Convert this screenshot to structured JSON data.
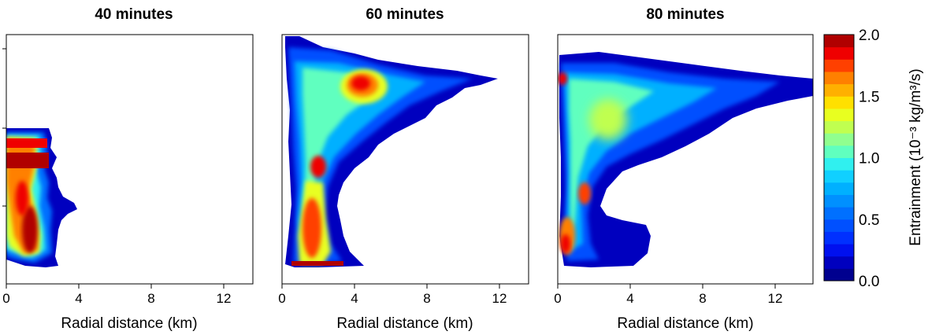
{
  "chart_data": [
    {
      "type": "heatmap",
      "title": "40 minutes",
      "xlabel": "Radial distance (km)",
      "ylabel": "",
      "xlim": [
        0,
        14
      ],
      "xticks": [
        "0",
        "4",
        "8",
        "12"
      ],
      "xtick_values": [
        0,
        4,
        8,
        12
      ],
      "colorbar_ref": "colorbar"
    },
    {
      "type": "heatmap",
      "title": "60 minutes",
      "xlabel": "Radial distance (km)",
      "ylabel": "",
      "xlim": [
        0,
        14
      ],
      "xticks": [
        "0",
        "4",
        "8",
        "12"
      ],
      "xtick_values": [
        0,
        4,
        8,
        12
      ],
      "colorbar_ref": "colorbar"
    },
    {
      "type": "heatmap",
      "title": "80 minutes",
      "xlabel": "Radial distance (km)",
      "ylabel": "",
      "xlim": [
        0,
        14
      ],
      "xticks": [
        "0",
        "4",
        "8",
        "12"
      ],
      "xtick_values": [
        0,
        4,
        8,
        12
      ],
      "colorbar_ref": "colorbar"
    }
  ],
  "colorbar": {
    "label": "Entrainment (10⁻³ kg/m³/s)",
    "min": 0.0,
    "max": 2.0,
    "ticks": [
      "0.0",
      "0.5",
      "1.0",
      "1.5",
      "2.0"
    ],
    "tick_values": [
      0.0,
      0.5,
      1.0,
      1.5,
      2.0
    ],
    "levels": 20,
    "colors": [
      "#00008f",
      "#0000bf",
      "#0010ef",
      "#0030ff",
      "#0050ff",
      "#0070ff",
      "#0090ff",
      "#00b0ff",
      "#10d0ff",
      "#30f0ef",
      "#60ffbf",
      "#90ff8f",
      "#c0ff50",
      "#e8ff20",
      "#ffe000",
      "#ffb000",
      "#ff8000",
      "#ff4000",
      "#ef0000",
      "#b00000"
    ]
  }
}
